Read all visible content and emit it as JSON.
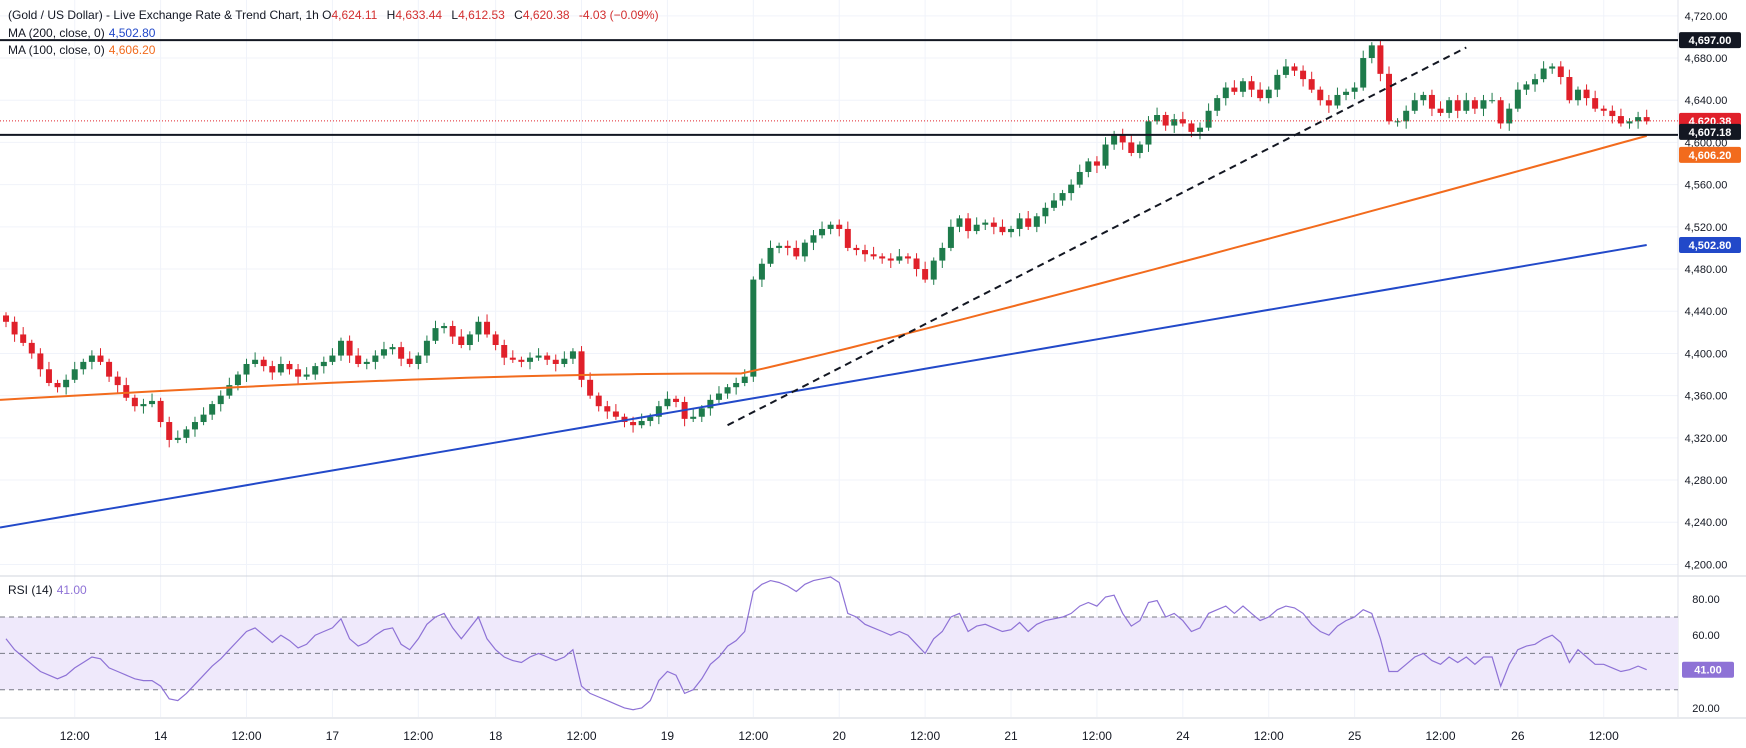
{
  "header": {
    "title": "(Gold / US Dollar) - Live Exchange Rate & Trend Chart, 1h",
    "ohlc": {
      "o_label": "O",
      "o": "4,624.11",
      "h_label": "H",
      "h": "4,633.44",
      "l_label": "L",
      "l": "4,612.53",
      "c_label": "C",
      "c": "4,620.38",
      "change": "-4.03 (−0.09%)"
    }
  },
  "indicators": {
    "ma200": {
      "label": "MA (200, close, 0)",
      "value": "4,502.80",
      "color": "#2249c9"
    },
    "ma100": {
      "label": "MA (100, close, 0)",
      "value": "4,606.20",
      "color": "#f26b1d"
    },
    "rsi": {
      "label": "RSI (14)",
      "value": "41.00",
      "color": "#8e72d6"
    }
  },
  "colors": {
    "up": "#1e7b4b",
    "down": "#e0202a",
    "grid": "#f0f3fa",
    "band": "#efe9fb"
  },
  "chart_data": [
    {
      "type": "candlestick",
      "title": "(Gold / US Dollar) - Live Exchange Rate & Trend Chart, 1h",
      "ylim": [
        4190,
        4735
      ],
      "y_ticks": [
        4200,
        4240,
        4280,
        4320,
        4360,
        4400,
        4440,
        4480,
        4520,
        4560,
        4600,
        4640,
        4680,
        4720
      ],
      "y_tick_labels": [
        "4,200.00",
        "4,240.00",
        "4,280.00",
        "4,320.00",
        "4,360.00",
        "4,400.00",
        "4,440.00",
        "4,480.00",
        "4,520.00",
        "4,560.00",
        "4,600.00",
        "4,640.00",
        "4,680.00",
        "4,720.00"
      ],
      "x_tick_labels": [
        {
          "label": "12:00",
          "idx": 8
        },
        {
          "label": "14",
          "idx": 18
        },
        {
          "label": "12:00",
          "idx": 28
        },
        {
          "label": "17",
          "idx": 38
        },
        {
          "label": "12:00",
          "idx": 48
        },
        {
          "label": "18",
          "idx": 57
        },
        {
          "label": "12:00",
          "idx": 67
        },
        {
          "label": "19",
          "idx": 77
        },
        {
          "label": "12:00",
          "idx": 87
        },
        {
          "label": "20",
          "idx": 97
        },
        {
          "label": "12:00",
          "idx": 107
        },
        {
          "label": "21",
          "idx": 117
        },
        {
          "label": "12:00",
          "idx": 127
        },
        {
          "label": "24",
          "idx": 137
        },
        {
          "label": "12:00",
          "idx": 147
        },
        {
          "label": "25",
          "idx": 157
        },
        {
          "label": "12:00",
          "idx": 167
        },
        {
          "label": "26",
          "idx": 176
        },
        {
          "label": "12:00",
          "idx": 186
        }
      ],
      "close": [
        4430,
        4418,
        4410,
        4400,
        4385,
        4372,
        4368,
        4375,
        4385,
        4392,
        4398,
        4392,
        4378,
        4370,
        4358,
        4350,
        4352,
        4355,
        4335,
        4318,
        4320,
        4328,
        4335,
        4342,
        4352,
        4360,
        4370,
        4380,
        4390,
        4394,
        4388,
        4382,
        4390,
        4385,
        4378,
        4380,
        4388,
        4392,
        4398,
        4412,
        4398,
        4390,
        4392,
        4398,
        4404,
        4406,
        4395,
        4390,
        4398,
        4412,
        4424,
        4426,
        4416,
        4408,
        4418,
        4430,
        4418,
        4408,
        4396,
        4394,
        4392,
        4396,
        4398,
        4394,
        4390,
        4395,
        4402,
        4375,
        4360,
        4350,
        4345,
        4340,
        4335,
        4332,
        4336,
        4340,
        4350,
        4357,
        4354,
        4338,
        4340,
        4348,
        4356,
        4362,
        4368,
        4372,
        4378,
        4470,
        4485,
        4500,
        4502,
        4500,
        4492,
        4505,
        4512,
        4518,
        4522,
        4518,
        4500,
        4498,
        4494,
        4492,
        4490,
        4488,
        4492,
        4490,
        4480,
        4470,
        4488,
        4500,
        4520,
        4528,
        4516,
        4522,
        4524,
        4520,
        4515,
        4518,
        4528,
        4520,
        4530,
        4538,
        4545,
        4552,
        4560,
        4572,
        4582,
        4578,
        4598,
        4608,
        4600,
        4590,
        4598,
        4620,
        4626,
        4616,
        4622,
        4618,
        4610,
        4614,
        4630,
        4642,
        4652,
        4648,
        4658,
        4650,
        4642,
        4650,
        4664,
        4672,
        4668,
        4660,
        4650,
        4640,
        4635,
        4645,
        4648,
        4652,
        4680,
        4692,
        4665,
        4620,
        4620,
        4630,
        4640,
        4645,
        4632,
        4628,
        4640,
        4630,
        4640,
        4632,
        4640,
        4640,
        4618,
        4632,
        4650,
        4655,
        4660,
        4670,
        4672,
        4662,
        4640,
        4650,
        4642,
        4632,
        4630,
        4625,
        4618,
        4620,
        4624,
        4620
      ],
      "ma200": {
        "color": "#2249c9",
        "start": 4235,
        "end": 4502.8
      },
      "ma100": {
        "color": "#f26b1d",
        "start": 4356,
        "end": 4606.2
      },
      "horizontal_levels": [
        4697.0,
        4607.18,
        4620.38
      ],
      "price_labels": [
        {
          "value": 4697.0,
          "text": "4,697.00",
          "bg": "#131722"
        },
        {
          "value": 4620.38,
          "text": "4,620.38",
          "bg": "#e0202a"
        },
        {
          "value": 4607.18,
          "text": "4,607.18",
          "bg": "#131722"
        },
        {
          "value": 4606.2,
          "text": "4,606.20",
          "bg": "#f26b1d"
        },
        {
          "value": 4502.8,
          "text": "4,502.80",
          "bg": "#2249c9"
        }
      ],
      "trendline": {
        "from": {
          "idx": 84,
          "value": 4332
        },
        "to": {
          "idx": 170,
          "value": 4690
        }
      }
    },
    {
      "type": "line",
      "title": "RSI (14)",
      "ylim": [
        15,
        92
      ],
      "y_ticks": [
        20,
        40,
        60,
        80
      ],
      "y_tick_labels": [
        "20.00",
        "",
        "60.00",
        "80.00"
      ],
      "levels": [
        70,
        50,
        30
      ],
      "values": [
        58,
        52,
        48,
        44,
        40,
        38,
        36,
        38,
        42,
        45,
        48,
        47,
        42,
        40,
        38,
        36,
        35,
        35,
        32,
        25,
        24,
        28,
        33,
        38,
        43,
        47,
        52,
        57,
        62,
        64,
        60,
        56,
        60,
        57,
        53,
        55,
        60,
        62,
        64,
        69,
        58,
        54,
        56,
        60,
        63,
        64,
        55,
        52,
        58,
        66,
        70,
        72,
        64,
        58,
        64,
        70,
        58,
        52,
        48,
        46,
        45,
        48,
        50,
        48,
        46,
        48,
        52,
        32,
        28,
        26,
        24,
        22,
        20,
        19,
        20,
        24,
        35,
        40,
        38,
        28,
        30,
        36,
        44,
        48,
        54,
        57,
        62,
        84,
        88,
        90,
        89,
        87,
        84,
        88,
        90,
        91,
        92,
        89,
        72,
        70,
        66,
        64,
        62,
        60,
        62,
        60,
        55,
        50,
        58,
        62,
        70,
        72,
        62,
        65,
        66,
        64,
        62,
        63,
        67,
        62,
        66,
        68,
        69,
        70,
        72,
        76,
        78,
        76,
        81,
        82,
        72,
        65,
        68,
        78,
        79,
        70,
        72,
        68,
        62,
        64,
        72,
        74,
        76,
        72,
        76,
        72,
        68,
        70,
        74,
        76,
        75,
        72,
        66,
        62,
        60,
        65,
        68,
        70,
        74,
        72,
        58,
        40,
        40,
        44,
        48,
        50,
        46,
        44,
        48,
        45,
        48,
        44,
        48,
        48,
        32,
        44,
        52,
        54,
        55,
        58,
        60,
        56,
        45,
        52,
        48,
        44,
        44,
        42,
        40,
        41,
        43,
        41
      ]
    }
  ]
}
